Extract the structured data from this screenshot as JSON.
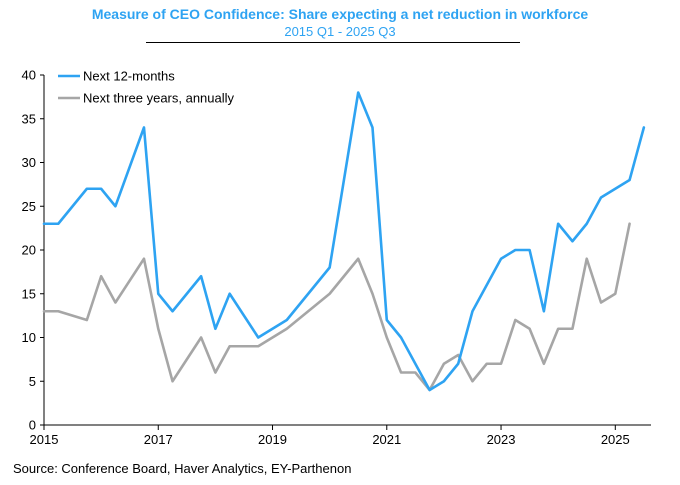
{
  "chart_data": {
    "type": "line",
    "title": "Measure of CEO Confidence: Share expecting a net reduction in workforce",
    "subtitle": "2015 Q1 - 2025 Q3",
    "xlabel": "",
    "ylabel": "",
    "ylim": [
      0,
      40
    ],
    "xlim": [
      2015.0,
      2025.625
    ],
    "yticks": [
      "0",
      "5",
      "10",
      "15",
      "20",
      "25",
      "30",
      "35",
      "40"
    ],
    "xticks": [
      "2015",
      "2017",
      "2019",
      "2021",
      "2023",
      "2025"
    ],
    "grid": false,
    "legend_position": "top-left",
    "series": [
      {
        "name": "Next 12-months",
        "color": "#2ea3f2",
        "points": [
          [
            2015.0,
            23
          ],
          [
            2015.25,
            23
          ],
          [
            2015.75,
            27
          ],
          [
            2016.0,
            27
          ],
          [
            2016.25,
            25
          ],
          [
            2016.75,
            34
          ],
          [
            2017.0,
            15
          ],
          [
            2017.25,
            13
          ],
          [
            2017.75,
            17
          ],
          [
            2018.0,
            11
          ],
          [
            2018.25,
            15
          ],
          [
            2018.75,
            10
          ],
          [
            2019.25,
            12
          ],
          [
            2020.0,
            18
          ],
          [
            2020.5,
            38
          ],
          [
            2020.75,
            34
          ],
          [
            2021.0,
            12
          ],
          [
            2021.25,
            10
          ],
          [
            2021.75,
            4
          ],
          [
            2022.0,
            5
          ],
          [
            2022.25,
            7
          ],
          [
            2022.5,
            13
          ],
          [
            2023.0,
            19
          ],
          [
            2023.25,
            20
          ],
          [
            2023.5,
            20
          ],
          [
            2023.75,
            13
          ],
          [
            2024.0,
            23
          ],
          [
            2024.25,
            21
          ],
          [
            2024.5,
            23
          ],
          [
            2024.75,
            26
          ],
          [
            2025.25,
            28
          ],
          [
            2025.5,
            34
          ]
        ]
      },
      {
        "name": "Next three years, annually",
        "color": "#a6a6a6",
        "points": [
          [
            2015.0,
            13
          ],
          [
            2015.25,
            13
          ],
          [
            2015.75,
            12
          ],
          [
            2016.0,
            17
          ],
          [
            2016.25,
            14
          ],
          [
            2016.75,
            19
          ],
          [
            2017.0,
            11
          ],
          [
            2017.25,
            5
          ],
          [
            2017.75,
            10
          ],
          [
            2018.0,
            6
          ],
          [
            2018.25,
            9
          ],
          [
            2018.75,
            9
          ],
          [
            2019.25,
            11
          ],
          [
            2020.0,
            15
          ],
          [
            2020.5,
            19
          ],
          [
            2020.75,
            15
          ],
          [
            2021.0,
            10
          ],
          [
            2021.25,
            6
          ],
          [
            2021.5,
            6
          ],
          [
            2021.75,
            4
          ],
          [
            2022.0,
            7
          ],
          [
            2022.25,
            8
          ],
          [
            2022.5,
            5
          ],
          [
            2022.75,
            7
          ],
          [
            2023.0,
            7
          ],
          [
            2023.25,
            12
          ],
          [
            2023.5,
            11
          ],
          [
            2023.75,
            7
          ],
          [
            2024.0,
            11
          ],
          [
            2024.25,
            11
          ],
          [
            2024.5,
            19
          ],
          [
            2024.75,
            14
          ],
          [
            2025.0,
            15
          ],
          [
            2025.25,
            23
          ]
        ]
      }
    ],
    "source": "Source:  Conference Board, Haver Analytics, EY-Parthenon"
  }
}
